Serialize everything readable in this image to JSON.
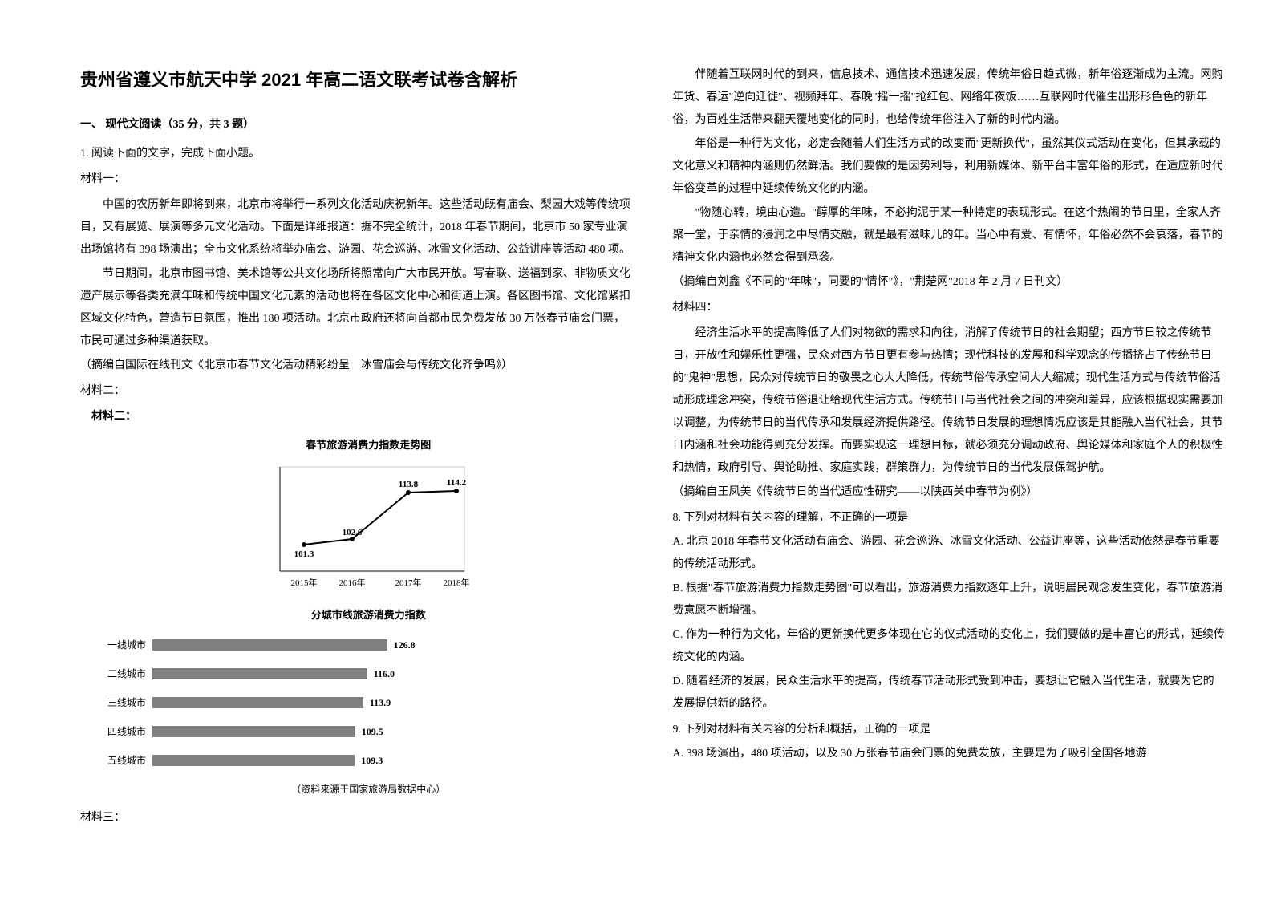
{
  "title": "贵州省遵义市航天中学 2021 年高二语文联考试卷含解析",
  "section1": "一、 现代文阅读（35 分，共 3 题）",
  "q1": "1. 阅读下面的文字，完成下面小题。",
  "m1_label": "材料一：",
  "m1_p1": "中国的农历新年即将到来，北京市将举行一系列文化活动庆祝新年。这些活动既有庙会、梨园大戏等传统项目，又有展览、展演等多元文化活动。下面是详细报道：据不完全统计，2018 年春节期间，北京市 50 家专业演出场馆将有 398 场演出；全市文化系统将举办庙会、游园、花会巡游、冰雪文化活动、公益讲座等活动 480 项。",
  "m1_p2": "节日期间，北京市图书馆、美术馆等公共文化场所将照常向广大市民开放。写春联、送福到家、非物质文化遗产展示等各类充满年味和传统中国文化元素的活动也将在各区文化中心和街道上演。各区图书馆、文化馆紧扣区域文化特色，营造节日氛围，推出 180 项活动。北京市政府还将向首都市民免费发放 30 万张春节庙会门票，市民可通过多种渠道获取。",
  "m1_src": "（摘编自国际在线刊文《北京市春节文化活动精彩纷呈　冰雪庙会与传统文化齐争鸣》）",
  "m2_label": "材料二：",
  "m2_label2": "材料二：",
  "line_chart": {
    "title": "春节旅游消费力指数走势图",
    "years": [
      "2015年",
      "2016年",
      "2017年",
      "2018年"
    ],
    "values": [
      101.3,
      102.6,
      113.8,
      114.2
    ],
    "ylim": [
      95,
      120
    ],
    "line_color": "#000000",
    "marker_color": "#000000",
    "grid_color": "#cccccc",
    "background": "#ffffff"
  },
  "bar_chart": {
    "title": "分城市线旅游消费力指数",
    "rows": [
      {
        "label": "一线城市",
        "value": 126.8
      },
      {
        "label": "二线城市",
        "value": 116.0
      },
      {
        "label": "三线城市",
        "value": 113.9
      },
      {
        "label": "四线城市",
        "value": 109.5
      },
      {
        "label": "五线城市",
        "value": 109.3
      }
    ],
    "max": 130,
    "bar_color": "#808080",
    "background": "#ffffff"
  },
  "chart_source": "（资料来源于国家旅游局数据中心）",
  "m3_label": "材料三：",
  "m3_p1": "伴随着互联网时代的到来，信息技术、通信技术迅速发展，传统年俗日趋式微，新年俗逐渐成为主流。网购年货、春运\"逆向迁徙\"、视频拜年、春晚\"摇一摇\"抢红包、网络年夜饭……互联网时代催生出形形色色的新年俗，为百姓生活带来翻天覆地变化的同时，也给传统年俗注入了新的时代内涵。",
  "m3_p2": "年俗是一种行为文化，必定会随着人们生活方式的改变而\"更新换代\"，虽然其仪式活动在变化，但其承载的文化意义和精神内涵则仍然鲜活。我们要做的是因势利导，利用新媒体、新平台丰富年俗的形式，在适应新时代年俗变革的过程中延续传统文化的内涵。",
  "m3_p3": "\"物随心转，境由心造。\"醇厚的年味，不必拘泥于某一种特定的表现形式。在这个热闹的节日里，全家人齐聚一堂，于亲情的浸润之中尽情交融，就是最有滋味儿的年。当心中有爱、有情怀，年俗必然不会衰落，春节的精神文化内涵也必然会得到承袭。",
  "m3_src": "（摘编自刘鑫《不同的\"年味\"，同要的\"情怀\"》，\"荆楚网\"2018 年 2 月 7 日刊文）",
  "m4_label": "材料四：",
  "m4_p1": "经济生活水平的提高降低了人们对物欲的需求和向往，消解了传统节日的社会期望；西方节日较之传统节日，开放性和娱乐性更强，民众对西方节日更有参与热情；现代科技的发展和科学观念的传播挤占了传统节日的\"鬼神\"思想，民众对传统节日的敬畏之心大大降低，传统节俗传承空间大大缩减；现代生活方式与传统节俗活动形成理念冲突，传统节俗退让给现代生活方式。传统节日与当代社会之间的冲突和差异，应该根据现实需要加以调整，为传统节日的当代传承和发展经济提供路径。传统节日发展的理想情况应该是其能融入当代社会，其节日内涵和社会功能得到充分发挥。而要实现这一理想目标，就必须充分调动政府、舆论媒体和家庭个人的积极性和热情，政府引导、舆论助推、家庭实践，群策群力，为传统节日的当代发展保驾护航。",
  "m4_src": "（摘编自王凤美《传统节日的当代适应性研究——以陕西关中春节为例》）",
  "q8": "8.  下列对材料有关内容的理解，不正确的一项是",
  "q8a": "A.  北京 2018 年春节文化活动有庙会、游园、花会巡游、冰雪文化活动、公益讲座等，这些活动依然是春节重要的传统活动形式。",
  "q8b": "B.  根据\"春节旅游消费力指数走势图\"可以看出，旅游消费力指数逐年上升，说明居民观念发生变化，春节旅游消费意愿不断增强。",
  "q8c": "C.  作为一种行为文化，年俗的更新换代更多体现在它的仪式活动的变化上，我们要做的是丰富它的形式，延续传统文化的内涵。",
  "q8d": "D.  随着经济的发展，民众生活水平的提高，传统春节活动形式受到冲击，要想让它融入当代生活，就要为它的发展提供新的路径。",
  "q9": "9.  下列对材料有关内容的分析和概括，正确的一项是",
  "q9a": "A.  398 场演出，480 项活动，以及 30 万张春节庙会门票的免费发放，主要是为了吸引全国各地游"
}
